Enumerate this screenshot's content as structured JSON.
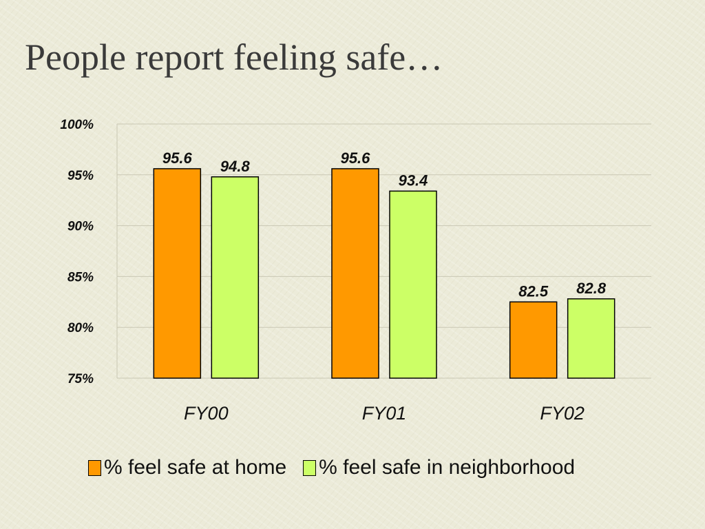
{
  "chart_data": {
    "type": "bar",
    "title": "People report feeling safe…",
    "categories": [
      "FY00",
      "FY01",
      "FY02"
    ],
    "series": [
      {
        "name": "% feel safe at home",
        "values": [
          95.6,
          95.6,
          82.5
        ],
        "labels": [
          "95.6",
          "95.6",
          "82.5"
        ],
        "color": "#ff9900"
      },
      {
        "name": "% feel safe in neighborhood",
        "values": [
          94.8,
          93.4,
          82.8
        ],
        "labels": [
          "94.8",
          "93.4",
          "82.8"
        ],
        "color": "#ccff66"
      }
    ],
    "ylim": [
      75,
      100
    ],
    "yticks": [
      {
        "value": 100,
        "label": "100%"
      },
      {
        "value": 95,
        "label": "95%"
      },
      {
        "value": 90,
        "label": "90%"
      },
      {
        "value": 85,
        "label": "85%"
      },
      {
        "value": 80,
        "label": "80%"
      },
      {
        "value": 75,
        "label": "75%"
      }
    ],
    "grid": true,
    "legend": "bottom"
  }
}
